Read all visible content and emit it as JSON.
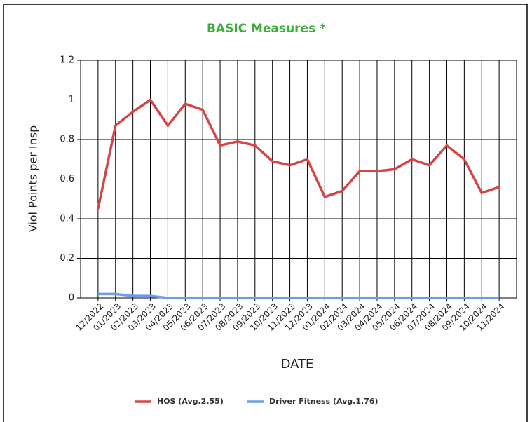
{
  "chart_data": {
    "type": "line",
    "title": "BASIC Measures *",
    "title_color": "#3cae3c",
    "x_label": "DATE",
    "y_label": "Viol Points per Insp",
    "categories": [
      "12/2022",
      "01/2023",
      "02/2023",
      "03/2023",
      "04/2023",
      "05/2023",
      "06/2023",
      "07/2023",
      "08/2023",
      "09/2023",
      "10/2023",
      "11/2023",
      "12/2023",
      "01/2024",
      "02/2024",
      "03/2024",
      "04/2024",
      "05/2024",
      "06/2024",
      "07/2024",
      "08/2024",
      "09/2024",
      "10/2024",
      "11/2024"
    ],
    "series": [
      {
        "name": "HOS (Avg.2.55)",
        "color": "#d64545",
        "values": [
          0.45,
          0.87,
          0.94,
          1.0,
          0.87,
          0.98,
          0.95,
          0.77,
          0.79,
          0.77,
          0.69,
          0.67,
          0.7,
          0.51,
          0.54,
          0.64,
          0.64,
          0.65,
          0.7,
          0.67,
          0.77,
          0.7,
          0.53,
          0.56
        ]
      },
      {
        "name": "Driver Fitness (Avg.1.76)",
        "color": "#6f9ce8",
        "values": [
          0.02,
          0.02,
          0.01,
          0.01,
          0,
          0,
          0,
          0,
          0,
          0,
          0,
          0,
          0,
          0,
          0,
          0,
          0,
          0,
          0,
          0,
          0,
          0,
          0,
          0
        ]
      }
    ],
    "ylim": [
      0,
      1.2
    ],
    "yticks": [
      0,
      0.2,
      0.4,
      0.6,
      0.8,
      1,
      1.2
    ],
    "grid": true,
    "legend": "bottom"
  }
}
